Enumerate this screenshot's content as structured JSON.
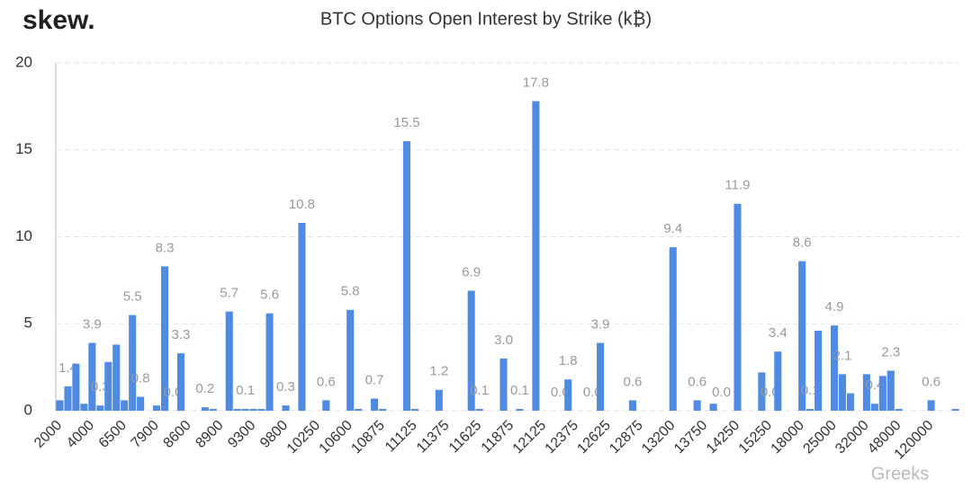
{
  "brand": "skew.",
  "watermark": "Greeks",
  "chart_data": {
    "type": "bar",
    "title": "BTC Options Open Interest by Strike (k₿)",
    "color": "#4f8ae3",
    "grid": true,
    "ylim": [
      0,
      20
    ],
    "yticks": [
      0,
      5,
      10,
      15,
      20
    ],
    "categories": [
      "2000",
      null,
      null,
      null,
      "4000",
      null,
      null,
      null,
      "6500",
      null,
      null,
      null,
      "7900",
      null,
      null,
      null,
      "8600",
      null,
      null,
      null,
      "8900",
      null,
      null,
      null,
      "9300",
      null,
      null,
      null,
      "9800",
      null,
      null,
      null,
      "10250",
      null,
      null,
      null,
      "10600",
      null,
      null,
      null,
      "10875",
      null,
      null,
      null,
      "11125",
      null,
      null,
      null,
      "11375",
      null,
      null,
      null,
      "11625",
      null,
      null,
      null,
      "11875",
      null,
      null,
      null,
      "12125",
      null,
      null,
      null,
      "12375",
      null,
      null,
      null,
      "12625",
      null,
      null,
      null,
      "12875",
      null,
      null,
      null,
      "13200",
      null,
      null,
      null,
      "13750",
      null,
      null,
      null,
      "14250",
      null,
      null,
      null,
      "15250",
      null,
      null,
      null,
      "18000",
      null,
      null,
      null,
      "25000",
      null,
      null,
      null,
      "32000",
      null,
      null,
      null,
      "48000",
      null,
      null,
      null,
      "120000",
      null,
      null,
      null
    ],
    "values": [
      0.6,
      1.4,
      2.7,
      0.4,
      3.9,
      0.3,
      2.8,
      3.8,
      0.6,
      5.5,
      0.8,
      0,
      0.3,
      8.3,
      0,
      3.3,
      0,
      0,
      0.2,
      0.1,
      0,
      5.7,
      0.1,
      0.1,
      0.1,
      0.1,
      5.6,
      0,
      0.3,
      0,
      10.8,
      0,
      0,
      0.6,
      0,
      0,
      5.8,
      0.1,
      0,
      0.7,
      0.1,
      0,
      0,
      15.5,
      0.1,
      0,
      0,
      1.2,
      0,
      0,
      0,
      6.9,
      0.1,
      0,
      0,
      3.0,
      0,
      0.1,
      0,
      17.8,
      0,
      0,
      0,
      1.8,
      0,
      0,
      0,
      3.9,
      0,
      0,
      0,
      0.6,
      0,
      0,
      0,
      0,
      9.4,
      0,
      0,
      0.6,
      0,
      0.4,
      0,
      0,
      11.9,
      0,
      0,
      2.2,
      0,
      3.4,
      0,
      0,
      8.6,
      0.1,
      4.6,
      0,
      4.9,
      2.1,
      1.0,
      0,
      2.1,
      0.4,
      2.0,
      2.3,
      0.1,
      0,
      0,
      0,
      0.6,
      0,
      0,
      0.1
    ],
    "value_labels": [
      null,
      "1.4",
      null,
      null,
      "3.9",
      "0.3",
      null,
      null,
      null,
      "5.5",
      "0.8",
      null,
      null,
      "8.3",
      "0.0",
      "3.3",
      null,
      null,
      "0.2",
      null,
      null,
      "5.7",
      null,
      "0.1",
      null,
      null,
      "5.6",
      null,
      "0.3",
      null,
      "10.8",
      null,
      null,
      "0.6",
      null,
      null,
      "5.8",
      null,
      null,
      "0.7",
      null,
      null,
      null,
      "15.5",
      null,
      null,
      null,
      "1.2",
      null,
      null,
      null,
      "6.9",
      "0.1",
      null,
      null,
      "3.0",
      null,
      "0.1",
      null,
      "17.8",
      null,
      null,
      "0.0",
      "1.8",
      null,
      null,
      "0.0",
      "3.9",
      null,
      null,
      null,
      "0.6",
      null,
      null,
      null,
      null,
      "9.4",
      null,
      null,
      "0.6",
      null,
      null,
      "0.0",
      null,
      "11.9",
      null,
      null,
      null,
      "0.0",
      "3.4",
      null,
      null,
      "8.6",
      "0.1",
      null,
      null,
      "4.9",
      "2.1",
      null,
      null,
      null,
      "0.4",
      null,
      "2.3",
      null,
      null,
      null,
      null,
      "0.6",
      null,
      null,
      null
    ]
  }
}
